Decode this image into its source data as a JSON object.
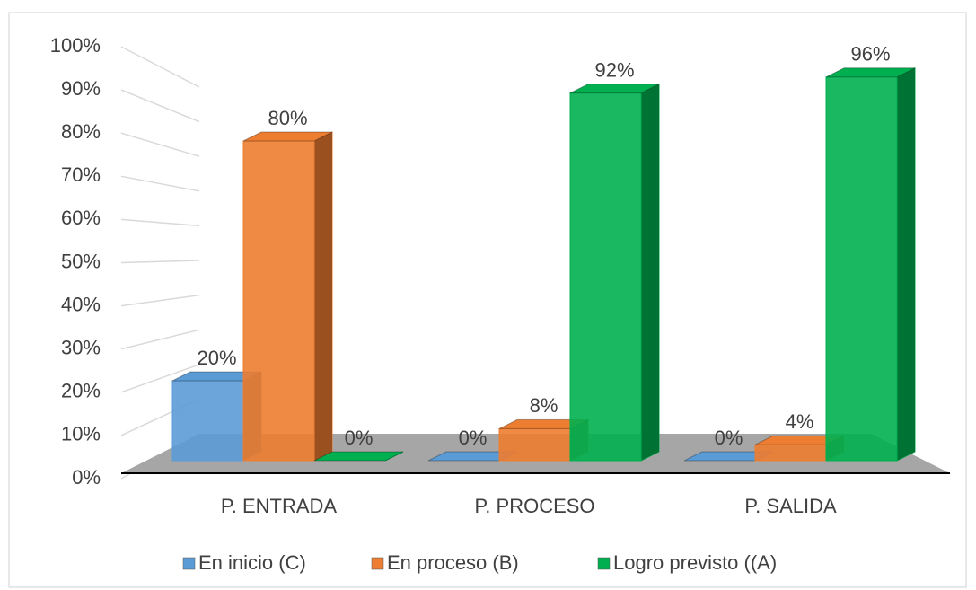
{
  "chart_data": {
    "type": "bar3d",
    "categories": [
      "P. ENTRADA",
      "P. PROCESO",
      "P. SALIDA"
    ],
    "series": [
      {
        "name": "En inicio (C)",
        "color": "#5b9bd5",
        "values": [
          20,
          0,
          0
        ],
        "value_labels": [
          "20%",
          "0%",
          "0%"
        ]
      },
      {
        "name": "En proceso (B)",
        "color": "#ed7d31",
        "values": [
          80,
          8,
          4
        ],
        "value_labels": [
          "80%",
          "8%",
          "4%"
        ]
      },
      {
        "name": "Logro previsto ((A)",
        "color": "#00b050",
        "values": [
          0,
          92,
          96
        ],
        "value_labels": [
          "0%",
          "92%",
          "96%"
        ]
      }
    ],
    "ylim": [
      0,
      100
    ],
    "yticks": [
      {
        "value": 0,
        "label": "0%"
      },
      {
        "value": 10,
        "label": "10%"
      },
      {
        "value": 20,
        "label": "20%"
      },
      {
        "value": 30,
        "label": "30%"
      },
      {
        "value": 40,
        "label": "40%"
      },
      {
        "value": 50,
        "label": "50%"
      },
      {
        "value": 60,
        "label": "60%"
      },
      {
        "value": 70,
        "label": "70%"
      },
      {
        "value": 80,
        "label": "80%"
      },
      {
        "value": 90,
        "label": "90%"
      },
      {
        "value": 100,
        "label": "100%"
      }
    ],
    "grid": true,
    "legend": "bottom"
  }
}
